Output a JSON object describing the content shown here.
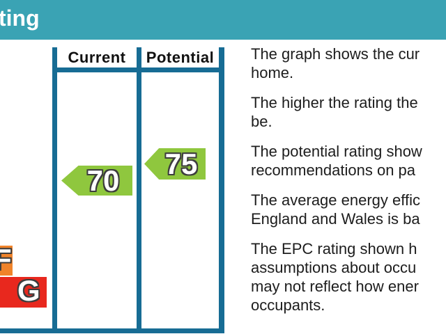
{
  "header": {
    "visible_title_fragment": "ting",
    "background_color": "#3AA3B4",
    "text_color": "#FFFFFF"
  },
  "chart_frame": {
    "border_color": "#176C94"
  },
  "chart_data": {
    "type": "bar",
    "title_visible_fragment": "ting",
    "columns": [
      "Current",
      "Potential"
    ],
    "series": [
      {
        "name": "Current",
        "value": 70,
        "band_color": "#8FC73E"
      },
      {
        "name": "Potential",
        "value": 75,
        "band_color": "#8FC73E"
      }
    ],
    "scale_bands_visible": [
      {
        "band": "F",
        "color": "#F0832A"
      },
      {
        "band": "G",
        "color": "#E8281E"
      }
    ],
    "legend_position": "top",
    "grid": false
  },
  "columns": {
    "current_label": "Current",
    "potential_label": "Potential"
  },
  "arrows": {
    "current_value": "70",
    "potential_value": "75",
    "color": "#8FC73E"
  },
  "bands": {
    "f_letter": "F",
    "f_color": "#F0832A",
    "g_letter": "G",
    "g_color": "#E8281E"
  },
  "description": {
    "paragraphs": [
      {
        "lines": [
          "The graph shows the cur",
          "home."
        ]
      },
      {
        "lines": [
          "The higher the rating the",
          "be."
        ]
      },
      {
        "lines": [
          "The potential rating show",
          "recommendations on pa"
        ]
      },
      {
        "lines": [
          "The average energy effic",
          "England and Wales is ba"
        ]
      },
      {
        "lines": [
          "The EPC rating shown h",
          "assumptions about occu",
          "may not reflect how ener",
          "occupants."
        ]
      }
    ]
  }
}
